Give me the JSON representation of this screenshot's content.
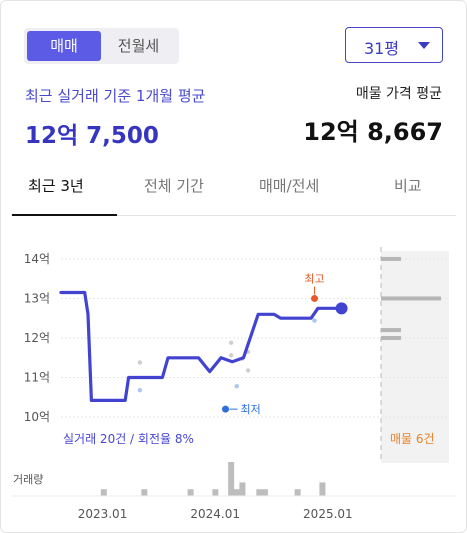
{
  "segment": {
    "options": [
      "매매",
      "전월세"
    ],
    "selected": "매매"
  },
  "size_select": {
    "value": "31평"
  },
  "summary": {
    "left_label": "최근 실거래 기준 1개월 평균",
    "left_value": "12억 7,500",
    "right_label": "매물 가격 평균",
    "right_value": "12억 8,667"
  },
  "tabs": [
    "최근 3년",
    "전체 기간",
    "매매/전세",
    "비교"
  ],
  "active_tab": "최근 3년",
  "colors": {
    "accent": "#4646d6",
    "line": "#4343d2",
    "max_marker": "#e8582a",
    "min_marker": "#2f6fe0",
    "listing_text": "#e8832a",
    "volume_bar": "#bdbdbd"
  },
  "chart_data": {
    "type": "line",
    "y_ticks": [
      "14억",
      "13억",
      "12억",
      "11억",
      "10억"
    ],
    "y_tick_values": [
      14,
      13,
      12,
      11,
      10
    ],
    "ylim": [
      9.9,
      14.15
    ],
    "x_ticks": [
      "2023.01",
      "2024.01",
      "2025.01"
    ],
    "x_tick_dates": [
      2023.0,
      2024.0,
      2025.0
    ],
    "xlim": [
      2022.88,
      2025.72
    ],
    "price_line": [
      {
        "x": 2022.88,
        "y": 13.15
      },
      {
        "x": 2023.09,
        "y": 13.15
      },
      {
        "x": 2023.12,
        "y": 12.6
      },
      {
        "x": 2023.15,
        "y": 10.42
      },
      {
        "x": 2023.45,
        "y": 10.42
      },
      {
        "x": 2023.48,
        "y": 11.0
      },
      {
        "x": 2023.78,
        "y": 11.0
      },
      {
        "x": 2023.83,
        "y": 11.5
      },
      {
        "x": 2024.1,
        "y": 11.5
      },
      {
        "x": 2024.2,
        "y": 11.15
      },
      {
        "x": 2024.3,
        "y": 11.5
      },
      {
        "x": 2024.4,
        "y": 11.4
      },
      {
        "x": 2024.5,
        "y": 11.5
      },
      {
        "x": 2024.63,
        "y": 12.6
      },
      {
        "x": 2024.77,
        "y": 12.6
      },
      {
        "x": 2024.83,
        "y": 12.5
      },
      {
        "x": 2025.1,
        "y": 12.5
      },
      {
        "x": 2025.16,
        "y": 12.75
      },
      {
        "x": 2025.37,
        "y": 12.75
      }
    ],
    "end_point": {
      "x": 2025.37,
      "y": 12.75
    },
    "transactions": [
      {
        "x": 2023.58,
        "y": 11.38
      },
      {
        "x": 2023.58,
        "y": 10.68
      },
      {
        "x": 2024.39,
        "y": 11.88
      },
      {
        "x": 2024.39,
        "y": 11.56
      },
      {
        "x": 2024.44,
        "y": 10.78
      },
      {
        "x": 2024.49,
        "y": 11.48
      },
      {
        "x": 2024.54,
        "y": 11.65
      },
      {
        "x": 2024.54,
        "y": 11.18
      },
      {
        "x": 2025.13,
        "y": 12.44
      }
    ],
    "max_marker": {
      "label": "최고",
      "x": 2025.13,
      "y": 13.0
    },
    "min_marker": {
      "label": "최저",
      "x": 2024.34,
      "y": 10.2
    },
    "listings": [
      {
        "y": 14.0,
        "w": 0.2
      },
      {
        "y": 13.0,
        "w": 0.6
      },
      {
        "y": 12.2,
        "w": 0.2
      },
      {
        "y": 12.0,
        "w": 0.2
      }
    ],
    "legend_left": "실거래 20건 / 회전율 8%",
    "legend_right": "매물 6건",
    "volume_label": "거래량",
    "volume": [
      {
        "x": 2023.26,
        "v": 1
      },
      {
        "x": 2023.62,
        "v": 1
      },
      {
        "x": 2024.03,
        "v": 1
      },
      {
        "x": 2024.25,
        "v": 1
      },
      {
        "x": 2024.39,
        "v": 5
      },
      {
        "x": 2024.44,
        "v": 1
      },
      {
        "x": 2024.49,
        "v": 2
      },
      {
        "x": 2024.64,
        "v": 1
      },
      {
        "x": 2024.69,
        "v": 1
      },
      {
        "x": 2024.98,
        "v": 1
      },
      {
        "x": 2025.2,
        "v": 2
      }
    ],
    "volume_max": 5
  }
}
